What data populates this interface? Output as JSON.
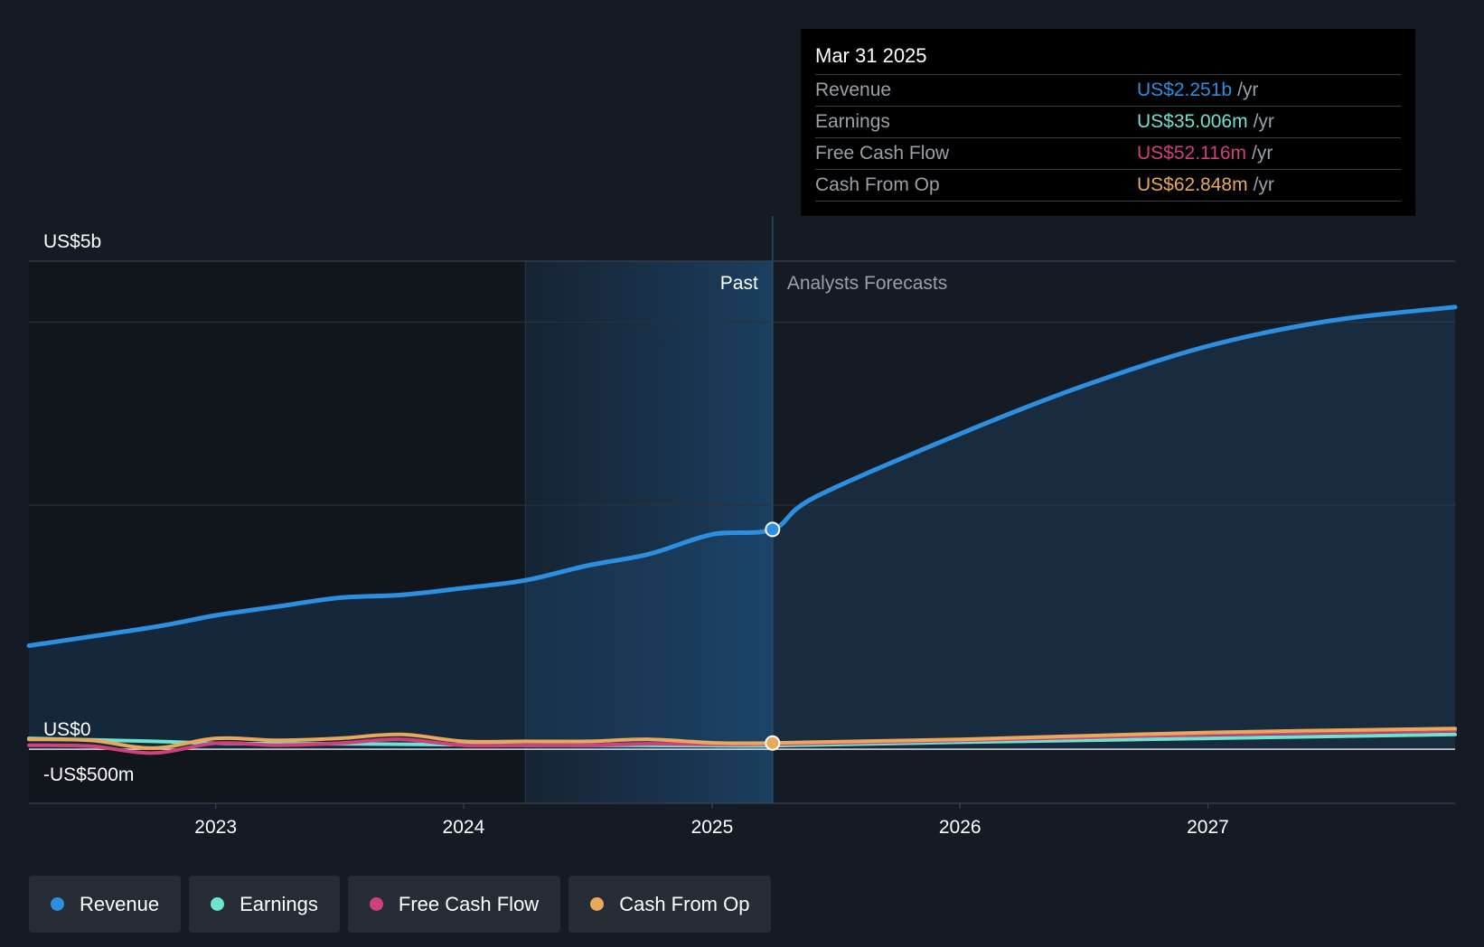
{
  "chart_data": {
    "type": "area",
    "y_axis": {
      "min": -500,
      "max": 5000,
      "unit": "US$ m",
      "labels": [
        "US$5b",
        "US$0",
        "-US$500m"
      ]
    },
    "x_axis": {
      "min": "2022-04-01",
      "max": "2027-12-31",
      "ticks": [
        "2023",
        "2024",
        "2025",
        "2026",
        "2027"
      ]
    },
    "regions": {
      "past_label": "Past",
      "forecast_label": "Analysts Forecasts",
      "highlight_start": "2024-04-01",
      "divider_date": "2025-03-31"
    },
    "series": [
      {
        "name": "Revenue",
        "color": "#2c8fe0",
        "points": [
          [
            "2022-04-01",
            1060
          ],
          [
            "2022-10-01",
            1250
          ],
          [
            "2023-01-01",
            1370
          ],
          [
            "2023-04-01",
            1460
          ],
          [
            "2023-07-01",
            1550
          ],
          [
            "2023-10-01",
            1580
          ],
          [
            "2024-01-01",
            1650
          ],
          [
            "2024-04-01",
            1730
          ],
          [
            "2024-07-01",
            1880
          ],
          [
            "2024-10-01",
            2000
          ],
          [
            "2025-01-01",
            2200
          ],
          [
            "2025-03-31",
            2251
          ],
          [
            "2025-06-01",
            2580
          ],
          [
            "2026-01-01",
            3230
          ],
          [
            "2026-07-01",
            3720
          ],
          [
            "2027-01-01",
            4130
          ],
          [
            "2027-07-01",
            4390
          ],
          [
            "2027-12-31",
            4530
          ]
        ]
      },
      {
        "name": "Earnings",
        "color": "#6de3d0",
        "points": [
          [
            "2022-04-01",
            110
          ],
          [
            "2022-10-01",
            80
          ],
          [
            "2023-01-01",
            60
          ],
          [
            "2023-04-01",
            55
          ],
          [
            "2023-07-01",
            55
          ],
          [
            "2023-10-01",
            50
          ],
          [
            "2024-01-01",
            45
          ],
          [
            "2024-04-01",
            40
          ],
          [
            "2024-07-01",
            40
          ],
          [
            "2024-10-01",
            38
          ],
          [
            "2025-01-01",
            36
          ],
          [
            "2025-03-31",
            35.006
          ],
          [
            "2026-01-01",
            70
          ],
          [
            "2027-01-01",
            110
          ],
          [
            "2027-12-31",
            150
          ]
        ]
      },
      {
        "name": "Free Cash Flow",
        "color": "#d0417b",
        "points": [
          [
            "2022-04-01",
            40
          ],
          [
            "2022-07-01",
            30
          ],
          [
            "2022-10-01",
            -40
          ],
          [
            "2023-01-01",
            60
          ],
          [
            "2023-04-01",
            40
          ],
          [
            "2023-07-01",
            60
          ],
          [
            "2023-10-01",
            100
          ],
          [
            "2024-01-01",
            40
          ],
          [
            "2024-04-01",
            40
          ],
          [
            "2024-07-01",
            40
          ],
          [
            "2024-10-01",
            55
          ],
          [
            "2025-01-01",
            50
          ],
          [
            "2025-03-31",
            52.116
          ],
          [
            "2026-01-01",
            90
          ],
          [
            "2027-01-01",
            150
          ],
          [
            "2027-12-31",
            190
          ]
        ]
      },
      {
        "name": "Cash From Op",
        "color": "#e8a95a",
        "points": [
          [
            "2022-04-01",
            100
          ],
          [
            "2022-07-01",
            90
          ],
          [
            "2022-10-01",
            10
          ],
          [
            "2023-01-01",
            110
          ],
          [
            "2023-04-01",
            90
          ],
          [
            "2023-07-01",
            110
          ],
          [
            "2023-10-01",
            150
          ],
          [
            "2024-01-01",
            80
          ],
          [
            "2024-04-01",
            80
          ],
          [
            "2024-07-01",
            80
          ],
          [
            "2024-10-01",
            100
          ],
          [
            "2025-01-01",
            65
          ],
          [
            "2025-03-31",
            62.848
          ],
          [
            "2026-01-01",
            100
          ],
          [
            "2027-01-01",
            170
          ],
          [
            "2027-12-31",
            210
          ]
        ]
      }
    ],
    "tooltip": {
      "date": "Mar 31 2025",
      "rows": [
        {
          "label": "Revenue",
          "value": "US$2.251b",
          "unit": "/yr",
          "color": "#2c8fe0"
        },
        {
          "label": "Earnings",
          "value": "US$35.006m",
          "unit": "/yr",
          "color": "#6de3d0"
        },
        {
          "label": "Free Cash Flow",
          "value": "US$52.116m",
          "unit": "/yr",
          "color": "#d0417b"
        },
        {
          "label": "Cash From Op",
          "value": "US$62.848m",
          "unit": "/yr",
          "color": "#e8a95a"
        }
      ]
    },
    "legend": [
      {
        "label": "Revenue",
        "color": "#2c8fe0"
      },
      {
        "label": "Earnings",
        "color": "#6de3d0"
      },
      {
        "label": "Free Cash Flow",
        "color": "#d0417b"
      },
      {
        "label": "Cash From Op",
        "color": "#e8a95a"
      }
    ]
  }
}
